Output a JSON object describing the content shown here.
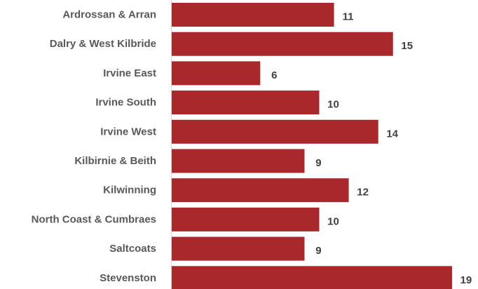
{
  "chart_data": {
    "type": "bar",
    "orientation": "horizontal",
    "title": "",
    "xlabel": "",
    "ylabel": "",
    "categories": [
      "Ardrossan & Arran",
      "Dalry & West Kilbride",
      "Irvine East",
      "Irvine South",
      "Irvine West",
      "Kilbirnie & Beith",
      "Kilwinning",
      "North Coast & Cumbraes",
      "Saltcoats",
      "Stevenston"
    ],
    "values": [
      11,
      15,
      6,
      10,
      14,
      9,
      12,
      10,
      9,
      19
    ],
    "xlim": [
      0,
      19
    ],
    "grid": false,
    "legend": "none",
    "data_labels": true,
    "bar_color": "#A8282B",
    "label_color": "#595959",
    "value_label_color": "#404040"
  }
}
